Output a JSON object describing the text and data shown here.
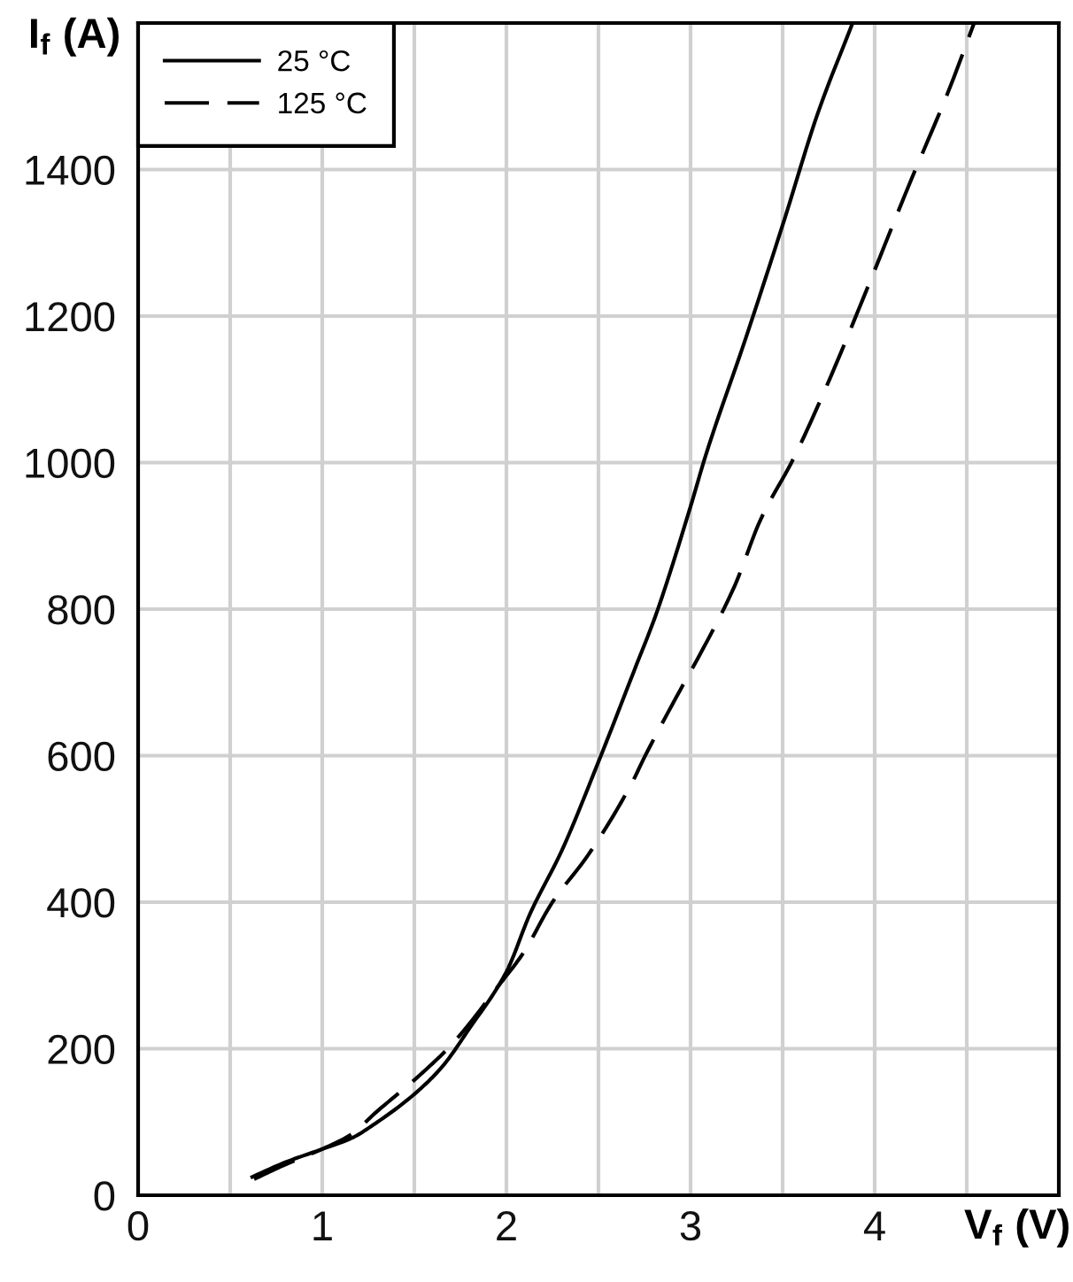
{
  "chart_data": {
    "type": "line",
    "xlabel": "V$_{f}$ (V)",
    "ylabel": "I$_{f}$ (A)",
    "xlim": [
      0,
      5
    ],
    "ylim": [
      0,
      1600
    ],
    "xticks": [
      0,
      {
        "value": 0.5,
        "label": null
      },
      1,
      {
        "value": 1.5,
        "label": null
      },
      2,
      {
        "value": 2.5,
        "label": null
      },
      3,
      {
        "value": 3.5,
        "label": null
      },
      4,
      {
        "value": 4.5,
        "label": null
      },
      {
        "value": 5,
        "label": null
      }
    ],
    "yticks": [
      0,
      200,
      400,
      600,
      800,
      1000,
      1200,
      1400,
      {
        "value": 1600,
        "label": null
      }
    ],
    "grid": true,
    "legend": "top left",
    "series": [
      {
        "name": "25 °C",
        "color": "#000000",
        "line_style": "solid",
        "x": [
          0.62,
          0.8,
          1.0,
          1.16,
          1.3,
          1.5,
          1.65,
          1.8,
          2.0,
          2.13,
          2.3,
          2.51,
          2.7,
          2.81,
          3.0,
          3.08,
          3.3,
          3.51,
          3.69,
          3.88
        ],
        "values": [
          25,
          45,
          63,
          78,
          100,
          138,
          175,
          228,
          305,
          385,
          470,
          598,
          720,
          791,
          940,
          1008,
          1170,
          1332,
          1476,
          1600
        ]
      },
      {
        "name": "125 °C",
        "color": "#000000",
        "line_style": "dashed",
        "x": [
          0.63,
          0.8,
          1.0,
          1.15,
          1.3,
          1.53,
          1.7,
          1.97,
          2.09,
          2.25,
          2.44,
          2.68,
          2.75,
          2.96,
          3.04,
          3.24,
          3.38,
          3.56,
          3.74,
          3.96,
          4.18,
          4.41,
          4.54
        ],
        "values": [
          22,
          42,
          63,
          82,
          115,
          164,
          205,
          290,
          330,
          400,
          463,
          562,
          598,
          697,
          733,
          832,
          922,
          1006,
          1105,
          1238,
          1375,
          1513,
          1600
        ]
      }
    ]
  }
}
